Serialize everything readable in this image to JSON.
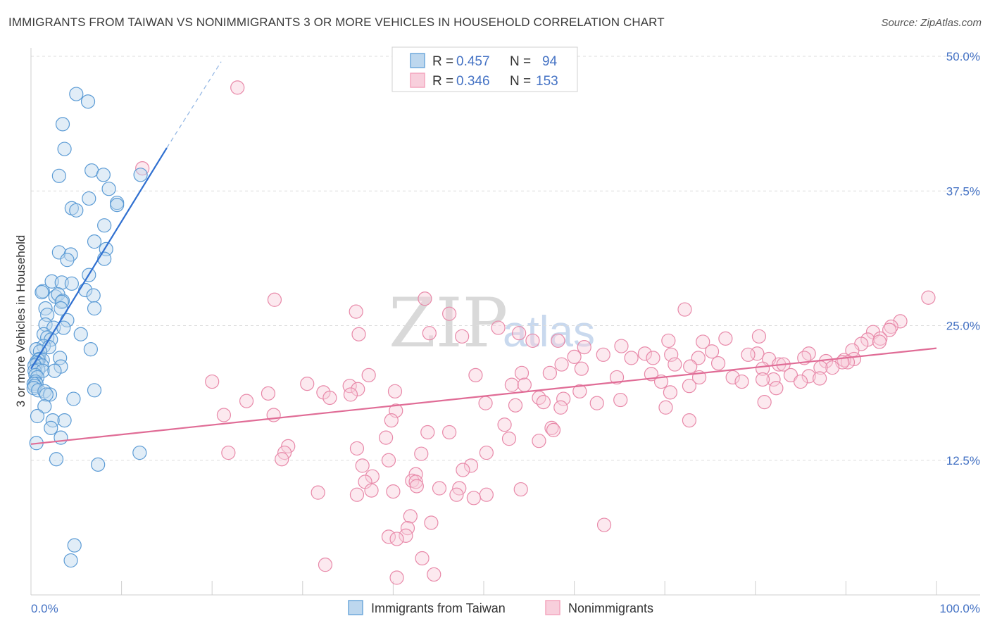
{
  "title": "IMMIGRANTS FROM TAIWAN VS NONIMMIGRANTS 3 OR MORE VEHICLES IN HOUSEHOLD CORRELATION CHART",
  "source": "Source: ZipAtlas.com",
  "watermark": {
    "zip": "ZIP",
    "atlas": "atlas"
  },
  "legend": {
    "r_label": "R =",
    "n_label": "N =",
    "rows": [
      {
        "r": "0.457",
        "n": "94",
        "color": "#6fa8dc"
      },
      {
        "r": "0.346",
        "n": "153",
        "color": "#f4a6be"
      }
    ]
  },
  "bottom_legend": [
    "Immigrants from Taiwan",
    "Nonimmigrants"
  ],
  "colors": {
    "blue": "#5b9bd5",
    "blue_fill": "#bdd7ee",
    "blue_line": "#2f6fd0",
    "pink": "#e889a9",
    "pink_fill": "#f8cfdc",
    "pink_line": "#e06c96",
    "tick": "#4472c4"
  },
  "chart_data": {
    "type": "scatter",
    "title": "IMMIGRANTS FROM TAIWAN VS NONIMMIGRANTS 3 OR MORE VEHICLES IN HOUSEHOLD CORRELATION CHART",
    "xlabel": "",
    "ylabel": "3 or more Vehicles in Household",
    "xlim": [
      0,
      100
    ],
    "ylim": [
      0,
      50
    ],
    "x_tick_labels": [
      "0.0%",
      "100.0%"
    ],
    "y_ticks": [
      12.5,
      25.0,
      37.5,
      50.0
    ],
    "y_tick_labels": [
      "12.5%",
      "25.0%",
      "37.5%",
      "50.0%"
    ],
    "series": [
      {
        "name": "Immigrants from Taiwan",
        "R": 0.457,
        "N": 94,
        "trend": {
          "x0": 0,
          "y0": 21.0,
          "x1": 15.0,
          "y1": 41.5,
          "dash_to_x": 21.0,
          "dash_to_y": 49.5
        },
        "points": [
          [
            5.0,
            46.5
          ],
          [
            6.3,
            45.8
          ],
          [
            3.5,
            43.7
          ],
          [
            3.7,
            41.4
          ],
          [
            6.7,
            39.4
          ],
          [
            3.1,
            38.9
          ],
          [
            8.0,
            39.0
          ],
          [
            12.1,
            39.0
          ],
          [
            8.6,
            37.7
          ],
          [
            6.4,
            36.8
          ],
          [
            9.5,
            36.4
          ],
          [
            9.5,
            36.2
          ],
          [
            4.5,
            35.9
          ],
          [
            5.0,
            35.7
          ],
          [
            8.1,
            34.3
          ],
          [
            7.0,
            32.8
          ],
          [
            8.3,
            32.1
          ],
          [
            3.1,
            31.8
          ],
          [
            4.4,
            31.6
          ],
          [
            4.0,
            31.1
          ],
          [
            8.1,
            31.2
          ],
          [
            6.4,
            29.7
          ],
          [
            2.3,
            29.1
          ],
          [
            3.4,
            29.0
          ],
          [
            4.5,
            28.9
          ],
          [
            6.0,
            28.3
          ],
          [
            1.3,
            28.2
          ],
          [
            1.2,
            28.1
          ],
          [
            6.9,
            27.8
          ],
          [
            2.7,
            27.7
          ],
          [
            3.0,
            27.9
          ],
          [
            3.5,
            27.3
          ],
          [
            3.4,
            27.2
          ],
          [
            1.6,
            26.6
          ],
          [
            3.3,
            26.6
          ],
          [
            7.0,
            26.6
          ],
          [
            1.8,
            26.0
          ],
          [
            4.0,
            25.5
          ],
          [
            1.6,
            25.1
          ],
          [
            2.5,
            24.8
          ],
          [
            3.6,
            24.8
          ],
          [
            1.4,
            24.2
          ],
          [
            5.5,
            24.2
          ],
          [
            1.8,
            23.9
          ],
          [
            2.2,
            23.7
          ],
          [
            1.4,
            23.1
          ],
          [
            0.6,
            22.8
          ],
          [
            2.0,
            23.0
          ],
          [
            6.6,
            22.8
          ],
          [
            1.0,
            22.6
          ],
          [
            3.2,
            22.0
          ],
          [
            0.9,
            21.9
          ],
          [
            1.3,
            21.8
          ],
          [
            0.8,
            21.8
          ],
          [
            0.6,
            21.6
          ],
          [
            0.7,
            21.5
          ],
          [
            1.2,
            21.3
          ],
          [
            0.4,
            21.3
          ],
          [
            3.3,
            21.2
          ],
          [
            0.8,
            20.9
          ],
          [
            0.4,
            20.8
          ],
          [
            1.3,
            20.8
          ],
          [
            2.6,
            20.8
          ],
          [
            0.5,
            20.4
          ],
          [
            0.7,
            20.2
          ],
          [
            0.5,
            19.8
          ],
          [
            0.6,
            19.6
          ],
          [
            0.3,
            19.6
          ],
          [
            0.4,
            19.4
          ],
          [
            0.3,
            19.2
          ],
          [
            0.8,
            19.0
          ],
          [
            7.0,
            19.0
          ],
          [
            1.5,
            18.9
          ],
          [
            2.1,
            18.6
          ],
          [
            1.7,
            18.6
          ],
          [
            4.7,
            18.2
          ],
          [
            1.5,
            17.5
          ],
          [
            0.7,
            16.6
          ],
          [
            2.4,
            16.2
          ],
          [
            3.7,
            16.2
          ],
          [
            2.2,
            15.5
          ],
          [
            3.3,
            14.6
          ],
          [
            0.6,
            14.1
          ],
          [
            12.0,
            13.2
          ],
          [
            2.8,
            12.6
          ],
          [
            7.4,
            12.1
          ],
          [
            4.8,
            4.6
          ],
          [
            4.4,
            3.2
          ]
        ]
      },
      {
        "name": "Nonimmigrants",
        "R": 0.346,
        "N": 153,
        "trend": {
          "x0": 0,
          "y0": 14.0,
          "x1": 100,
          "y1": 22.9
        },
        "points": [
          [
            22.8,
            47.1
          ],
          [
            12.3,
            39.6
          ],
          [
            26.9,
            27.4
          ],
          [
            43.5,
            27.5
          ],
          [
            99.1,
            27.6
          ],
          [
            96.0,
            25.4
          ],
          [
            72.2,
            26.5
          ],
          [
            46.2,
            26.1
          ],
          [
            35.9,
            26.3
          ],
          [
            95.0,
            24.9
          ],
          [
            94.8,
            24.6
          ],
          [
            80.4,
            24.0
          ],
          [
            93.0,
            24.4
          ],
          [
            44.0,
            24.3
          ],
          [
            36.2,
            24.2
          ],
          [
            51.6,
            24.8
          ],
          [
            47.6,
            24.0
          ],
          [
            92.4,
            23.7
          ],
          [
            53.9,
            24.3
          ],
          [
            93.8,
            23.8
          ],
          [
            76.7,
            23.8
          ],
          [
            55.4,
            23.6
          ],
          [
            74.2,
            23.5
          ],
          [
            58.2,
            23.6
          ],
          [
            70.4,
            23.6
          ],
          [
            93.7,
            23.5
          ],
          [
            91.7,
            23.3
          ],
          [
            65.2,
            23.1
          ],
          [
            61.1,
            23.0
          ],
          [
            90.7,
            22.7
          ],
          [
            75.2,
            22.6
          ],
          [
            85.9,
            22.4
          ],
          [
            80.2,
            22.4
          ],
          [
            70.7,
            22.3
          ],
          [
            67.8,
            22.4
          ],
          [
            63.2,
            22.3
          ],
          [
            85.4,
            22.0
          ],
          [
            73.7,
            22.0
          ],
          [
            81.5,
            21.9
          ],
          [
            79.2,
            22.3
          ],
          [
            60.0,
            22.1
          ],
          [
            68.7,
            22.0
          ],
          [
            66.3,
            22.0
          ],
          [
            90.9,
            21.9
          ],
          [
            89.8,
            21.8
          ],
          [
            87.8,
            21.7
          ],
          [
            75.9,
            21.5
          ],
          [
            90.2,
            21.6
          ],
          [
            89.6,
            21.6
          ],
          [
            82.6,
            21.4
          ],
          [
            83.1,
            21.4
          ],
          [
            71.1,
            21.4
          ],
          [
            72.8,
            21.2
          ],
          [
            58.6,
            21.4
          ],
          [
            60.8,
            21.0
          ],
          [
            80.8,
            21.0
          ],
          [
            88.5,
            21.1
          ],
          [
            87.2,
            21.1
          ],
          [
            54.2,
            20.6
          ],
          [
            57.3,
            20.6
          ],
          [
            68.5,
            20.5
          ],
          [
            37.3,
            20.4
          ],
          [
            49.1,
            20.4
          ],
          [
            64.7,
            20.2
          ],
          [
            73.8,
            20.2
          ],
          [
            85.9,
            20.3
          ],
          [
            83.9,
            20.4
          ],
          [
            82.0,
            20.0
          ],
          [
            87.1,
            20.1
          ],
          [
            80.8,
            20.0
          ],
          [
            77.5,
            20.2
          ],
          [
            78.5,
            19.8
          ],
          [
            85.0,
            19.8
          ],
          [
            69.6,
            19.8
          ],
          [
            20.0,
            19.8
          ],
          [
            30.5,
            19.6
          ],
          [
            53.1,
            19.5
          ],
          [
            35.2,
            19.4
          ],
          [
            54.5,
            19.5
          ],
          [
            72.7,
            19.4
          ],
          [
            82.3,
            19.2
          ],
          [
            36.1,
            19.1
          ],
          [
            32.3,
            18.8
          ],
          [
            70.6,
            18.8
          ],
          [
            60.6,
            18.9
          ],
          [
            40.2,
            18.9
          ],
          [
            35.3,
            18.6
          ],
          [
            26.2,
            18.7
          ],
          [
            33.0,
            18.3
          ],
          [
            56.1,
            18.3
          ],
          [
            58.8,
            18.2
          ],
          [
            65.1,
            18.1
          ],
          [
            23.8,
            18.0
          ],
          [
            56.6,
            17.9
          ],
          [
            81.0,
            17.9
          ],
          [
            62.5,
            17.8
          ],
          [
            50.2,
            17.8
          ],
          [
            53.5,
            17.6
          ],
          [
            58.5,
            17.4
          ],
          [
            70.1,
            17.4
          ],
          [
            40.3,
            17.1
          ],
          [
            21.3,
            16.7
          ],
          [
            26.8,
            16.7
          ],
          [
            39.8,
            16.2
          ],
          [
            72.7,
            16.2
          ],
          [
            52.3,
            15.8
          ],
          [
            57.5,
            15.5
          ],
          [
            46.2,
            15.1
          ],
          [
            43.8,
            15.1
          ],
          [
            57.7,
            15.3
          ],
          [
            39.2,
            14.6
          ],
          [
            52.8,
            14.5
          ],
          [
            56.1,
            14.3
          ],
          [
            28.4,
            13.8
          ],
          [
            36.0,
            13.6
          ],
          [
            21.8,
            13.2
          ],
          [
            43.1,
            13.1
          ],
          [
            50.3,
            13.2
          ],
          [
            28.0,
            13.2
          ],
          [
            27.7,
            12.6
          ],
          [
            39.5,
            12.5
          ],
          [
            36.6,
            12.0
          ],
          [
            48.6,
            12.0
          ],
          [
            47.7,
            11.6
          ],
          [
            37.7,
            11.0
          ],
          [
            42.5,
            11.2
          ],
          [
            42.1,
            10.6
          ],
          [
            42.5,
            10.5
          ],
          [
            36.9,
            10.5
          ],
          [
            42.6,
            10.1
          ],
          [
            47.3,
            9.9
          ],
          [
            45.1,
            9.9
          ],
          [
            54.1,
            9.8
          ],
          [
            37.6,
            9.7
          ],
          [
            40.0,
            9.6
          ],
          [
            31.7,
            9.5
          ],
          [
            36.0,
            9.3
          ],
          [
            47.0,
            9.3
          ],
          [
            50.3,
            9.3
          ],
          [
            48.9,
            9.0
          ],
          [
            41.9,
            7.3
          ],
          [
            44.2,
            6.7
          ],
          [
            63.3,
            6.5
          ],
          [
            41.6,
            6.2
          ],
          [
            41.4,
            5.5
          ],
          [
            39.5,
            5.4
          ],
          [
            40.4,
            5.2
          ],
          [
            43.2,
            3.4
          ],
          [
            32.5,
            2.8
          ],
          [
            44.5,
            1.9
          ],
          [
            40.4,
            1.6
          ]
        ]
      }
    ]
  }
}
